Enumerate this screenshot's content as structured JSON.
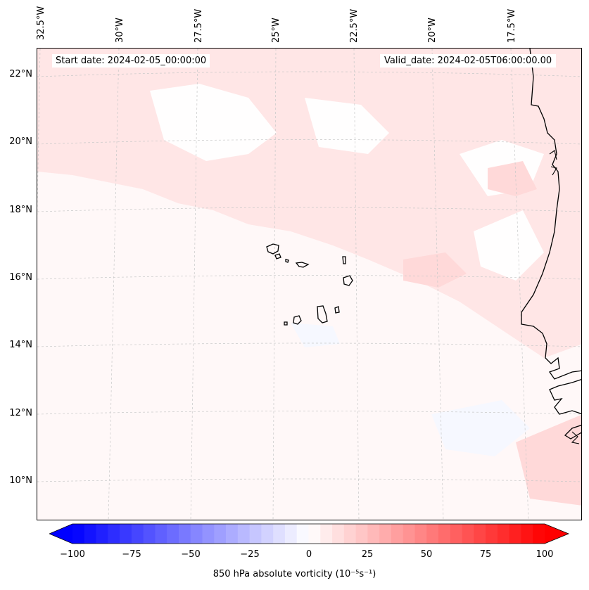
{
  "map": {
    "start_date": "Start date: 2024-02-05_00:00:00",
    "valid_date": "Valid_date: 2024-02-05T06:00:00.00",
    "lon_labels": [
      "32.5°W",
      "30°W",
      "27.5°W",
      "25°W",
      "22.5°W",
      "20°W",
      "17.5°W"
    ],
    "lat_labels": [
      "22°N",
      "20°N",
      "18°N",
      "16°N",
      "14°N",
      "12°N",
      "10°N"
    ],
    "field_colors": {
      "background": "#fff8f8",
      "light_pink": "#ffe6e6",
      "medium_pink": "#ffd9d9",
      "near_white": "#fffefe",
      "light_blue": "#f6f8ff"
    },
    "coastline_color": "#000000",
    "gridline_color": "#c8c8c8"
  },
  "colorbar": {
    "ticks": [
      "−100",
      "−75",
      "−50",
      "−25",
      "0",
      "25",
      "50",
      "75",
      "100"
    ],
    "label": "850 hPa absolute vorticity (10⁻⁵s⁻¹)",
    "min": -100,
    "max": 100,
    "colormap": "bwr",
    "extend": "both"
  }
}
